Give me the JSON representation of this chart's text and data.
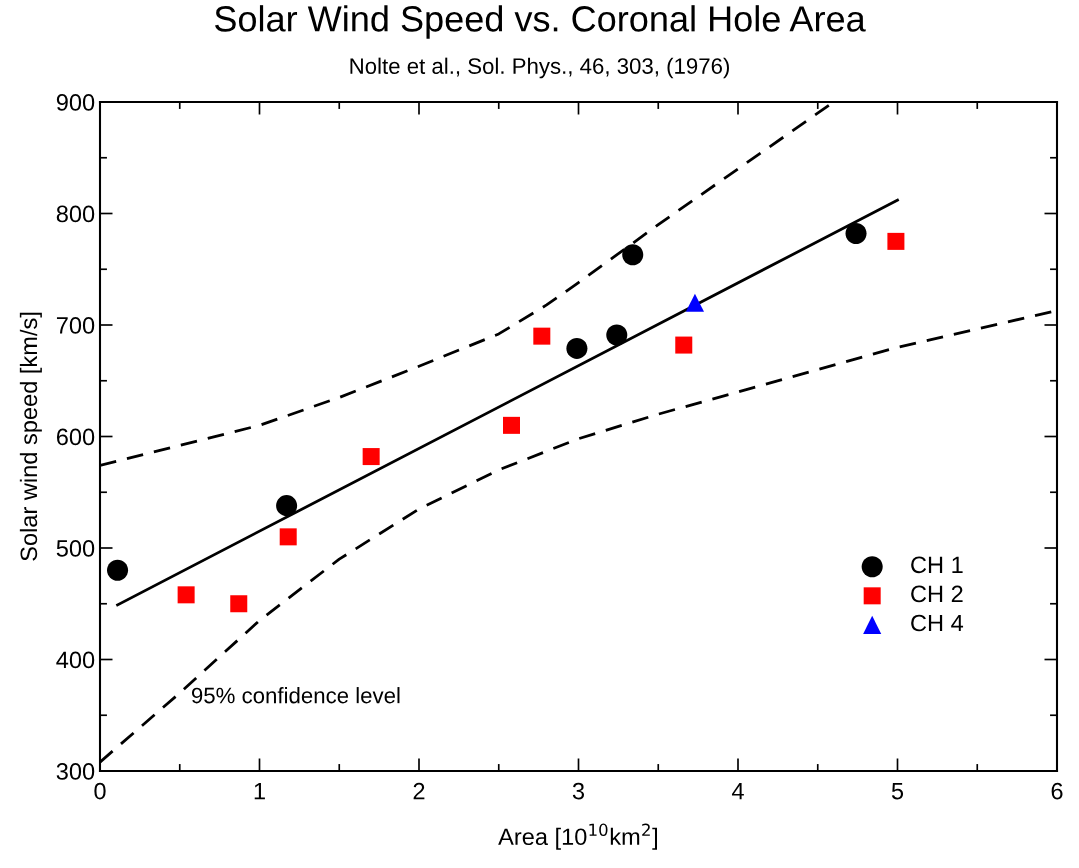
{
  "chart_data": {
    "type": "scatter",
    "title": "Solar Wind Speed vs. Coronal Hole Area",
    "subtitle": "Nolte et al., Sol. Phys., 46, 303, (1976)",
    "xlabel": "Area [10$^{10}$km$^{2}$]",
    "ylabel": "Solar wind speed [km/s]",
    "xlim": [
      0,
      6
    ],
    "ylim": [
      300,
      900
    ],
    "xticks": [
      0,
      {
        "value": 0.5,
        "label": null
      },
      1,
      {
        "value": 1.5,
        "label": null
      },
      2,
      {
        "value": 2.5,
        "label": null
      },
      3,
      {
        "value": 3.5,
        "label": null
      },
      4,
      {
        "value": 4.5,
        "label": null
      },
      5,
      {
        "value": 5.5,
        "label": null
      },
      6
    ],
    "yticks": [
      300,
      {
        "value": 350,
        "label": null
      },
      400,
      {
        "value": 450,
        "label": null
      },
      500,
      {
        "value": 550,
        "label": null
      },
      600,
      {
        "value": 650,
        "label": null
      },
      700,
      {
        "value": 750,
        "label": null
      },
      800,
      {
        "value": 850,
        "label": null
      },
      900
    ],
    "grid": false,
    "legend": "right",
    "annotations": [
      "95% confidence level"
    ],
    "series": [
      {
        "name": "CH 1",
        "color": "#000000",
        "marker": "circle",
        "x": [
          0.11,
          1.17,
          2.99,
          3.24,
          3.34,
          4.74
        ],
        "values": [
          480,
          538,
          679,
          691,
          763,
          782
        ]
      },
      {
        "name": "CH 2",
        "color": "#ff0000",
        "marker": "square",
        "x": [
          0.54,
          0.87,
          1.18,
          1.7,
          2.58,
          2.77,
          3.66,
          4.99
        ],
        "values": [
          458,
          450,
          510,
          582,
          610,
          690,
          682,
          775
        ]
      },
      {
        "name": "CH 4",
        "color": "#0000ff",
        "marker": "triangle",
        "x": [
          3.73
        ],
        "values": [
          720
        ]
      },
      {
        "type": "line",
        "color": "#000000",
        "line_style": "solid",
        "x": [
          0.11,
          5.0
        ],
        "values": [
          449,
          812
        ]
      },
      {
        "type": "line",
        "color": "#000000",
        "line_style": "dashed",
        "x": [
          0,
          0.5,
          1,
          1.5,
          2,
          2.5,
          2.8,
          3,
          3.5,
          4,
          4.6
        ],
        "values": [
          574,
          592,
          610,
          635,
          663,
          692,
          718,
          738,
          790,
          840,
          900
        ]
      },
      {
        "type": "line",
        "color": "#000000",
        "line_style": "dashed",
        "x": [
          0,
          0.5,
          1,
          1.5,
          2,
          2.5,
          3,
          3.5,
          4,
          5,
          6
        ],
        "values": [
          308,
          370,
          435,
          490,
          535,
          570,
          598,
          620,
          640,
          680,
          713
        ]
      }
    ]
  }
}
